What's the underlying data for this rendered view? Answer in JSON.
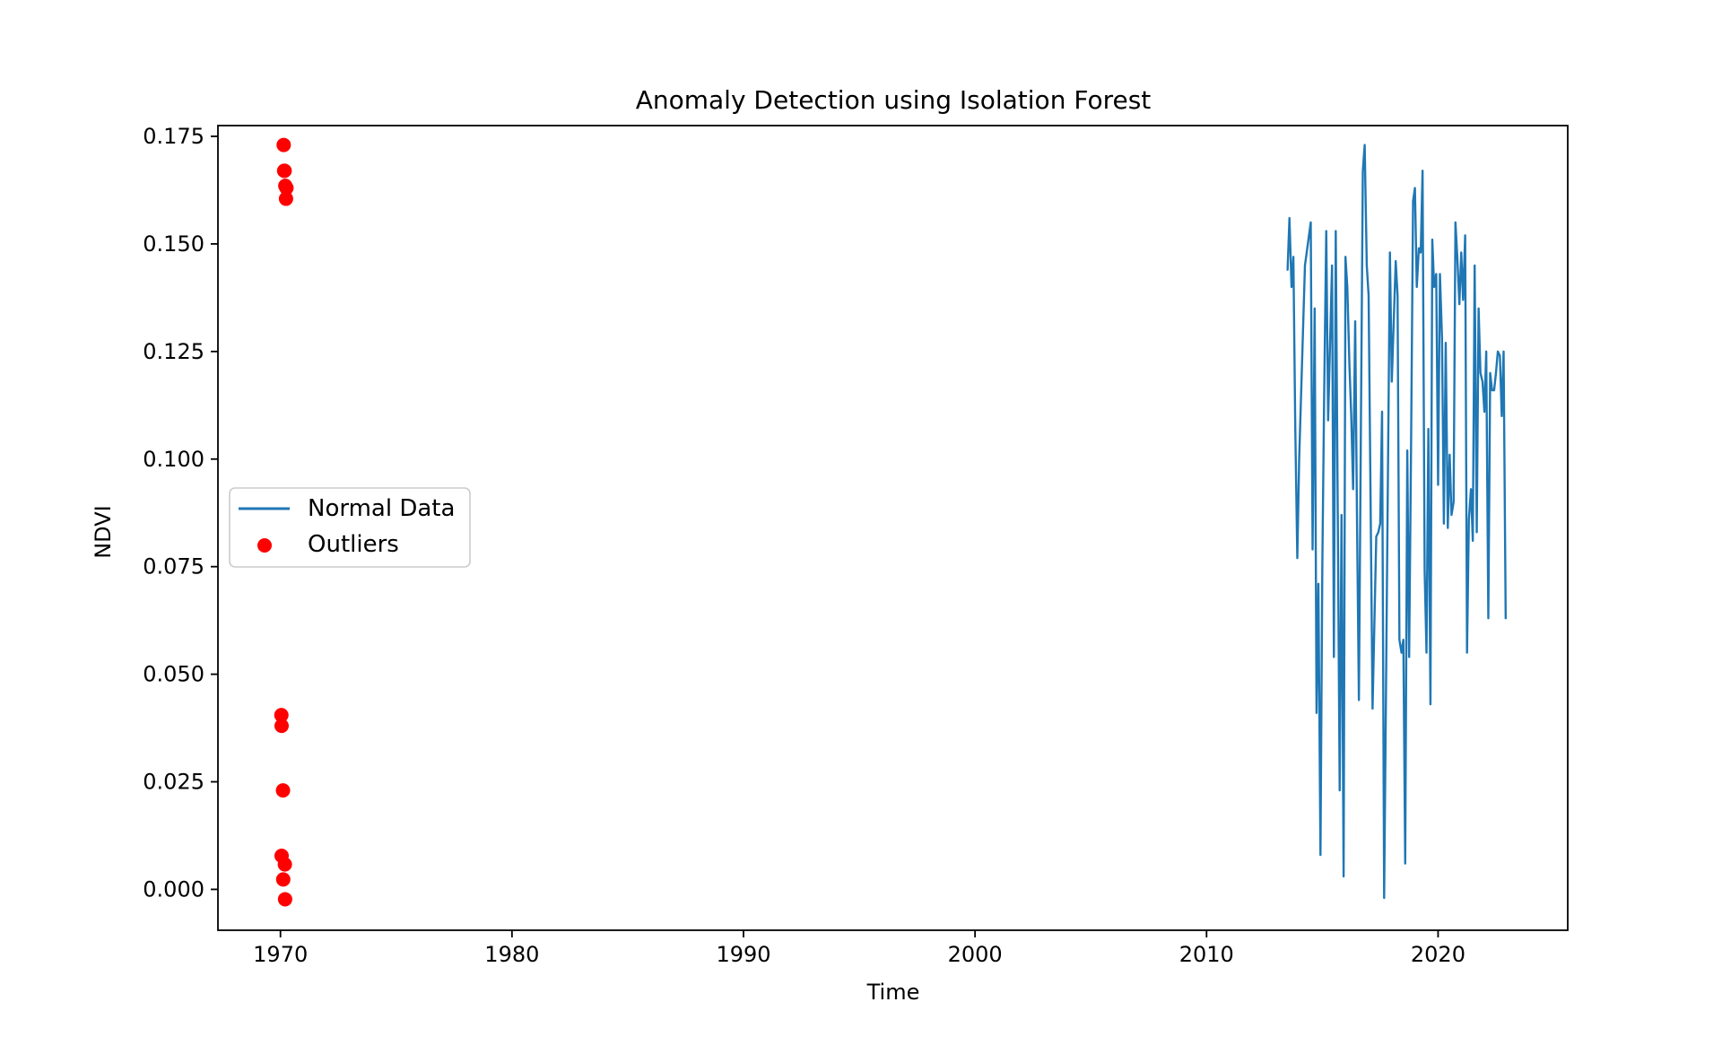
{
  "chart_data": {
    "type": "line",
    "title": "Anomaly Detection using Isolation Forest",
    "xlabel": "Time",
    "ylabel": "NDVI",
    "xlim": [
      1967.3,
      2025.6
    ],
    "ylim": [
      -0.0095,
      0.1775
    ],
    "x_ticks": [
      1970,
      1980,
      1990,
      2000,
      2010,
      2020
    ],
    "y_ticks": [
      0.0,
      0.025,
      0.05,
      0.075,
      0.1,
      0.125,
      0.15,
      0.175
    ],
    "x_tick_labels": [
      "1970",
      "1980",
      "1990",
      "2000",
      "2010",
      "2020"
    ],
    "y_tick_labels": [
      "0.000",
      "0.025",
      "0.050",
      "0.075",
      "0.100",
      "0.125",
      "0.150",
      "0.175"
    ],
    "grid": false,
    "legend_position": "center-left",
    "series": [
      {
        "name": "Normal Data",
        "style": "line",
        "color": "#1f77b4",
        "x": [
          2013.5,
          2013.58,
          2013.67,
          2013.75,
          2013.83,
          2013.92,
          2014.0,
          2014.25,
          2014.5,
          2014.58,
          2014.67,
          2014.75,
          2014.83,
          2014.92,
          2015.0,
          2015.08,
          2015.17,
          2015.25,
          2015.42,
          2015.5,
          2015.58,
          2015.67,
          2015.75,
          2015.83,
          2015.92,
          2016.0,
          2016.08,
          2016.17,
          2016.25,
          2016.33,
          2016.42,
          2016.5,
          2016.58,
          2016.67,
          2016.75,
          2016.83,
          2016.92,
          2017.0,
          2017.17,
          2017.33,
          2017.42,
          2017.5,
          2017.58,
          2017.67,
          2017.92,
          2018.0,
          2018.17,
          2018.25,
          2018.33,
          2018.42,
          2018.5,
          2018.58,
          2018.67,
          2018.75,
          2018.83,
          2018.92,
          2019.0,
          2019.08,
          2019.17,
          2019.25,
          2019.33,
          2019.42,
          2019.5,
          2019.58,
          2019.67,
          2019.75,
          2019.83,
          2019.92,
          2020.0,
          2020.08,
          2020.17,
          2020.25,
          2020.33,
          2020.42,
          2020.5,
          2020.58,
          2020.67,
          2020.75,
          2020.83,
          2020.92,
          2021.0,
          2021.08,
          2021.17,
          2021.25,
          2021.33,
          2021.42,
          2021.5,
          2021.58,
          2021.67,
          2021.75,
          2021.83,
          2021.92,
          2022.0,
          2022.08,
          2022.17,
          2022.25,
          2022.33,
          2022.42,
          2022.5,
          2022.58,
          2022.67,
          2022.75,
          2022.83,
          2022.92
        ],
        "y": [
          0.144,
          0.156,
          0.14,
          0.147,
          0.108,
          0.077,
          0.1,
          0.145,
          0.155,
          0.079,
          0.135,
          0.041,
          0.071,
          0.008,
          0.075,
          0.115,
          0.153,
          0.109,
          0.145,
          0.054,
          0.153,
          0.085,
          0.023,
          0.087,
          0.003,
          0.147,
          0.14,
          0.122,
          0.11,
          0.093,
          0.132,
          0.085,
          0.044,
          0.11,
          0.167,
          0.173,
          0.145,
          0.138,
          0.042,
          0.082,
          0.083,
          0.085,
          0.111,
          -0.002,
          0.148,
          0.118,
          0.146,
          0.138,
          0.058,
          0.055,
          0.058,
          0.006,
          0.102,
          0.054,
          0.101,
          0.16,
          0.163,
          0.14,
          0.149,
          0.148,
          0.167,
          0.074,
          0.055,
          0.107,
          0.043,
          0.151,
          0.14,
          0.143,
          0.094,
          0.143,
          0.128,
          0.085,
          0.127,
          0.084,
          0.101,
          0.087,
          0.09,
          0.155,
          0.147,
          0.136,
          0.148,
          0.137,
          0.152,
          0.055,
          0.086,
          0.093,
          0.081,
          0.145,
          0.083,
          0.135,
          0.12,
          0.118,
          0.111,
          0.125,
          0.063,
          0.12,
          0.116,
          0.116,
          0.12,
          0.125,
          0.124,
          0.11,
          0.125,
          0.063
        ],
        "line_width": 2.4
      },
      {
        "name": "Outliers",
        "style": "scatter",
        "color": "#ff0000",
        "x": [
          1970.14,
          1970.16,
          1970.18,
          1970.21,
          1970.24,
          1970.26,
          1970.04,
          1970.05,
          1970.11,
          1970.05,
          1970.19,
          1970.12,
          1970.2
        ],
        "y": [
          0.173,
          0.167,
          0.167,
          0.1635,
          0.1605,
          0.163,
          0.0405,
          0.038,
          0.023,
          0.0078,
          0.0058,
          0.0023,
          -0.0023
        ],
        "marker_radius": 8
      }
    ]
  }
}
